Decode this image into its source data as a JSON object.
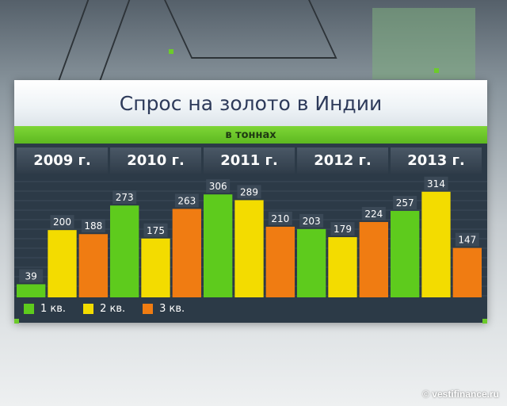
{
  "chart_data": {
    "type": "bar",
    "title": "Спрос на золото в Индии",
    "subtitle": "в тоннах",
    "categories": [
      "2009 г.",
      "2010 г.",
      "2011 г.",
      "2012 г.",
      "2013 г."
    ],
    "series": [
      {
        "name": "1 кв.",
        "color": "#5ecb1d",
        "values": [
          39,
          273,
          306,
          203,
          257
        ]
      },
      {
        "name": "2 кв.",
        "color": "#f3dc00",
        "values": [
          200,
          175,
          289,
          179,
          314
        ]
      },
      {
        "name": "3 кв.",
        "color": "#f07c12",
        "values": [
          188,
          263,
          210,
          224,
          147
        ]
      }
    ],
    "ylim": [
      0,
      330
    ],
    "grid": true,
    "legend_position": "bottom-left"
  },
  "colors": {
    "board": "#2c3a47",
    "accent_green": "#6ccb2a",
    "title_text": "#2d3a5a"
  },
  "watermark": "© vestifinance.ru"
}
